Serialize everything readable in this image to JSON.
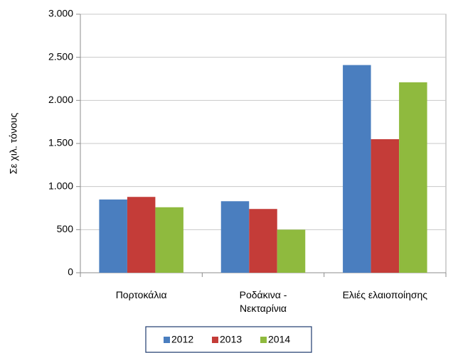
{
  "chart_data": {
    "type": "bar",
    "y_label": "Σε χιλ.  τόνους",
    "categories": [
      "Πορτοκάλια",
      "Ροδάκινα -\nΝεκταρίνια",
      "Ελιές ελαιοποίησης"
    ],
    "series": [
      {
        "name": "2012",
        "color": "#4a7ebf",
        "values": [
          850,
          830,
          2410
        ]
      },
      {
        "name": "2013",
        "color": "#c43c38",
        "values": [
          880,
          740,
          1550
        ]
      },
      {
        "name": "2014",
        "color": "#8fba3e",
        "values": [
          760,
          500,
          2210
        ]
      }
    ],
    "ylim": [
      0,
      3000
    ],
    "yticks": [
      0,
      500,
      {
        "value": 1000,
        "label": "1.000"
      },
      {
        "value": 1500,
        "label": "1.500"
      },
      {
        "value": 2000,
        "label": "2.000"
      },
      {
        "value": 2500,
        "label": "2.500"
      },
      {
        "value": 3000,
        "label": "3.000"
      }
    ],
    "grid": true,
    "legend": "bottom"
  }
}
